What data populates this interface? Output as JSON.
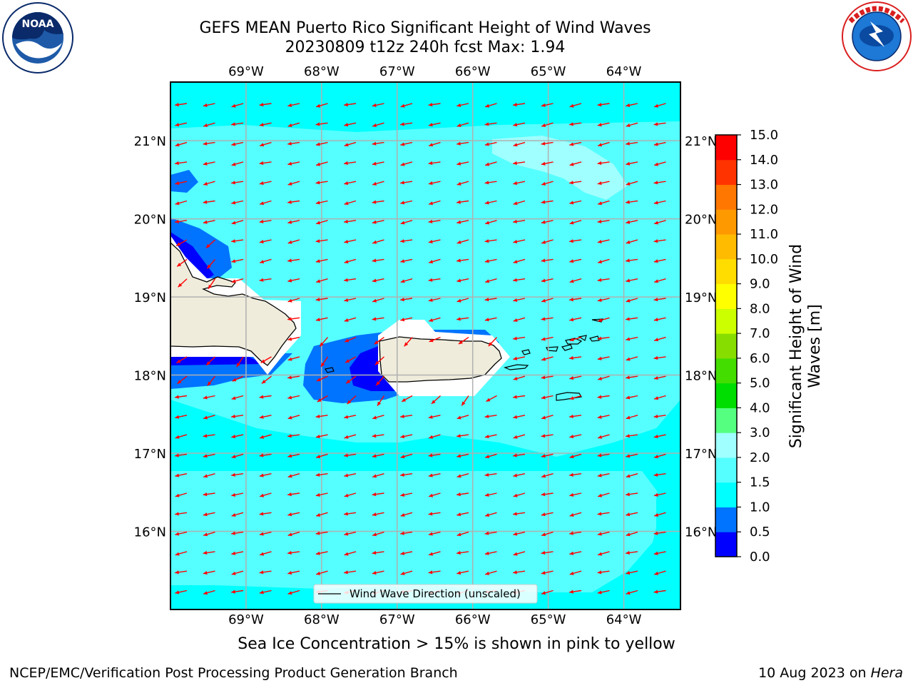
{
  "title": {
    "line1": "GEFS MEAN Puerto Rico Significant Height of Wind Waves",
    "line2": "20230809 t12z 240h fcst   Max: 1.94"
  },
  "map": {
    "lon_labels": [
      "69°W",
      "68°W",
      "67°W",
      "66°W",
      "65°W",
      "64°W"
    ],
    "lon_values": [
      -69,
      -68,
      -67,
      -66,
      -65,
      -64
    ],
    "lat_labels": [
      "21°N",
      "20°N",
      "19°N",
      "18°N",
      "17°N",
      "16°N"
    ],
    "lat_values": [
      21,
      20,
      19,
      18,
      17,
      16
    ],
    "extent": {
      "lon_min": -70.0,
      "lon_max": -63.25,
      "lat_min": 15.0,
      "lat_max": 21.75
    },
    "legend_label": "Wind Wave Direction (unscaled)",
    "arrow_color": "#ff0000",
    "land_color": "#efecdc",
    "background_ocean_color": "#00ffff"
  },
  "colorbar": {
    "label": "Significant Height of Wind Waves [m]",
    "ticks": [
      "0.0",
      "0.5",
      "1.0",
      "1.5",
      "2.0",
      "3.0",
      "4.0",
      "5.0",
      "6.0",
      "7.0",
      "8.0",
      "9.0",
      "10.0",
      "11.0",
      "12.0",
      "13.0",
      "14.0",
      "15.0"
    ],
    "colors": [
      "#0000ff",
      "#0073ff",
      "#00ffff",
      "#55ffff",
      "#a0ffff",
      "#55ff80",
      "#00dd00",
      "#44dd00",
      "#88dd00",
      "#ccff00",
      "#ffff00",
      "#ffdd00",
      "#ffbb00",
      "#ff9900",
      "#ff7700",
      "#ff3300",
      "#ff0000"
    ]
  },
  "footer": {
    "sea_ice_note": "Sea Ice Concentration > 15% is shown in pink to yellow",
    "left": "NCEP/EMC/Verification Post Processing Product Generation Branch",
    "right_date": "10 Aug 2023 on ",
    "right_host": "Hera"
  }
}
